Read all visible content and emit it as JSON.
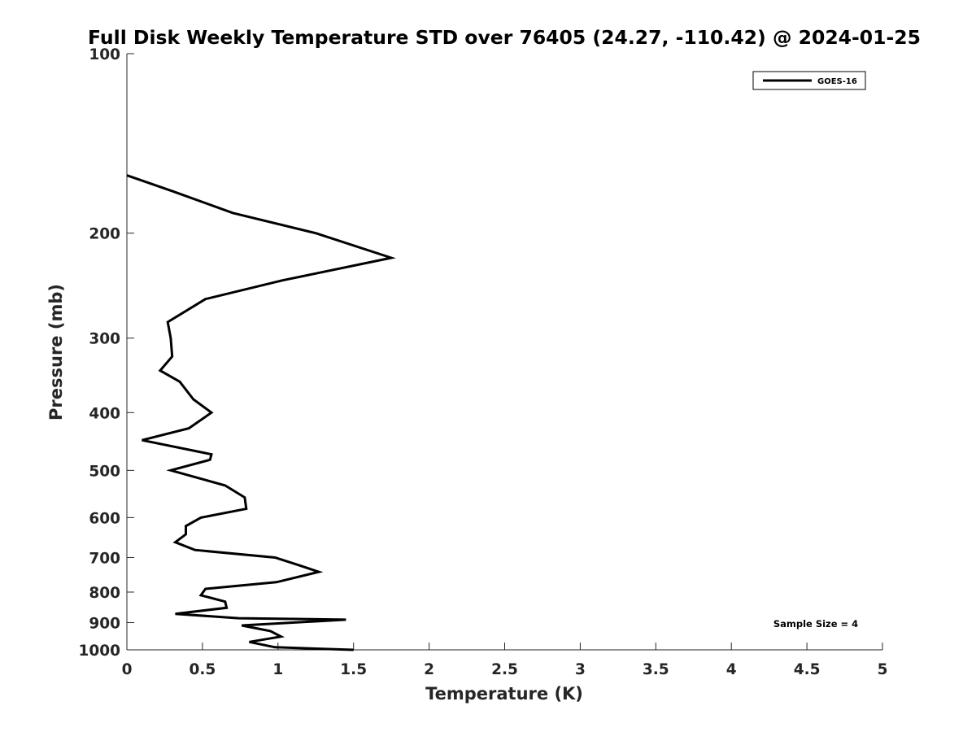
{
  "chart_data": {
    "type": "line",
    "title": "Full Disk Weekly Temperature STD over 76405 (24.27, -110.42) @ 2024-01-25",
    "xlabel": "Temperature (K)",
    "ylabel": "Pressure (mb)",
    "xlim": [
      0,
      5
    ],
    "ylim": [
      100,
      1000
    ],
    "y_scale": "log",
    "y_reversed": true,
    "grid": false,
    "legend_position": "top-right",
    "x_ticks": [
      "0",
      "0.5",
      "1",
      "1.5",
      "2",
      "2.5",
      "3",
      "3.5",
      "4",
      "4.5",
      "5"
    ],
    "y_ticks": [
      "100",
      "200",
      "300",
      "400",
      "500",
      "600",
      "700",
      "800",
      "900",
      "1000"
    ],
    "annotation": "Sample Size = 4",
    "series": [
      {
        "name": "GOES-16",
        "color": "#000000",
        "x": [
          0.0,
          0.3,
          0.7,
          1.25,
          1.75,
          1.03,
          0.52,
          0.27,
          0.29,
          0.3,
          0.22,
          0.35,
          0.44,
          0.56,
          0.41,
          0.1,
          0.56,
          0.55,
          0.29,
          0.65,
          0.78,
          0.79,
          0.49,
          0.39,
          0.39,
          0.32,
          0.45,
          0.98,
          1.13,
          1.27,
          0.99,
          0.52,
          0.49,
          0.65,
          0.66,
          0.32,
          0.74,
          1.45,
          0.76,
          0.95,
          1.02,
          0.81,
          0.98,
          1.5
        ],
        "y": [
          160,
          170,
          185,
          200,
          220,
          240,
          258,
          282,
          300,
          322,
          340,
          355,
          380,
          400,
          425,
          445,
          470,
          480,
          500,
          530,
          555,
          580,
          600,
          620,
          640,
          660,
          680,
          700,
          720,
          740,
          770,
          790,
          810,
          830,
          850,
          870,
          885,
          890,
          910,
          930,
          950,
          970,
          990,
          1000
        ]
      }
    ]
  }
}
